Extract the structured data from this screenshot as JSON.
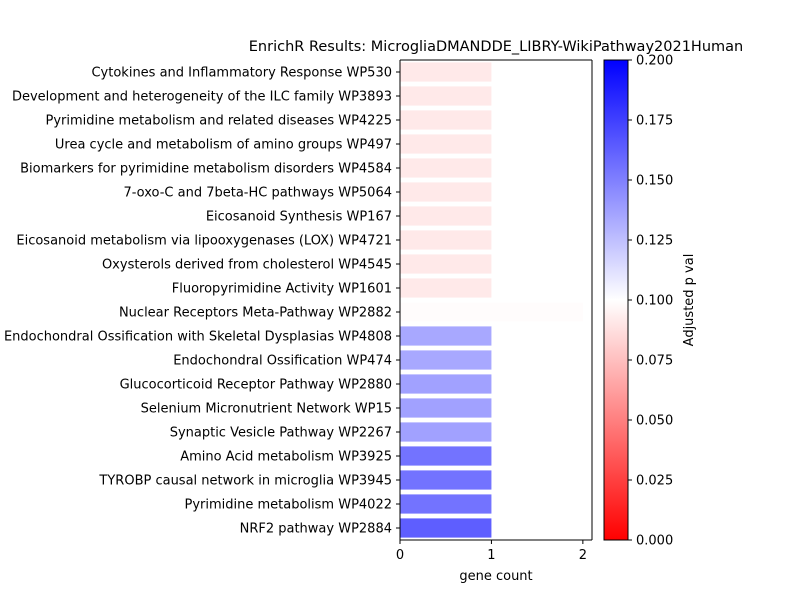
{
  "chart_data": {
    "type": "bar",
    "orientation": "horizontal",
    "title": "EnrichR Results: MicrogliaDMANDDE_LIBRY-WikiPathway2021Human",
    "xlabel": "gene count",
    "ylabel": "",
    "xlim": [
      0,
      2.1
    ],
    "xticks": [
      0,
      1,
      2
    ],
    "grid": false,
    "categories": [
      "Cytokines and Inflammatory Response WP530",
      "Development and heterogeneity of the ILC family WP3893",
      "Pyrimidine metabolism and related diseases WP4225",
      "Urea cycle and metabolism of amino groups WP497",
      "Biomarkers for pyrimidine metabolism disorders WP4584",
      "7-oxo-C and 7beta-HC pathways WP5064",
      "Eicosanoid Synthesis WP167",
      "Eicosanoid metabolism via lipooxygenases (LOX) WP4721",
      "Oxysterols derived from cholesterol WP4545",
      "Fluoropyrimidine Activity WP1601",
      "Nuclear Receptors Meta-Pathway WP2882",
      "Endochondral Ossification with Skeletal Dysplasias WP4808",
      "Endochondral Ossification WP474",
      "Glucocorticoid Receptor Pathway WP2880",
      "Selenium Micronutrient Network WP15",
      "Synaptic Vesicle Pathway WP2267",
      "Amino Acid metabolism WP3925",
      "TYROBP causal network in microglia WP3945",
      "Pyrimidine metabolism WP4022",
      "NRF2 pathway WP2884"
    ],
    "values": [
      1,
      1,
      1,
      1,
      1,
      1,
      1,
      1,
      1,
      1,
      2,
      1,
      1,
      1,
      1,
      1,
      1,
      1,
      1,
      1
    ],
    "color_values": [
      0.0915,
      0.0915,
      0.0915,
      0.0915,
      0.0915,
      0.0915,
      0.0915,
      0.0915,
      0.0915,
      0.0915,
      0.099,
      0.134,
      0.134,
      0.137,
      0.137,
      0.137,
      0.155,
      0.155,
      0.155,
      0.163
    ],
    "colorbar": {
      "label": "Adjusted p val",
      "range": [
        0,
        0.2
      ],
      "ticks": [
        "0.000",
        "0.025",
        "0.050",
        "0.075",
        "0.100",
        "0.125",
        "0.150",
        "0.175",
        "0.200"
      ],
      "colors": [
        "#ff0000",
        "#ffffff",
        "#0000ff"
      ]
    }
  }
}
